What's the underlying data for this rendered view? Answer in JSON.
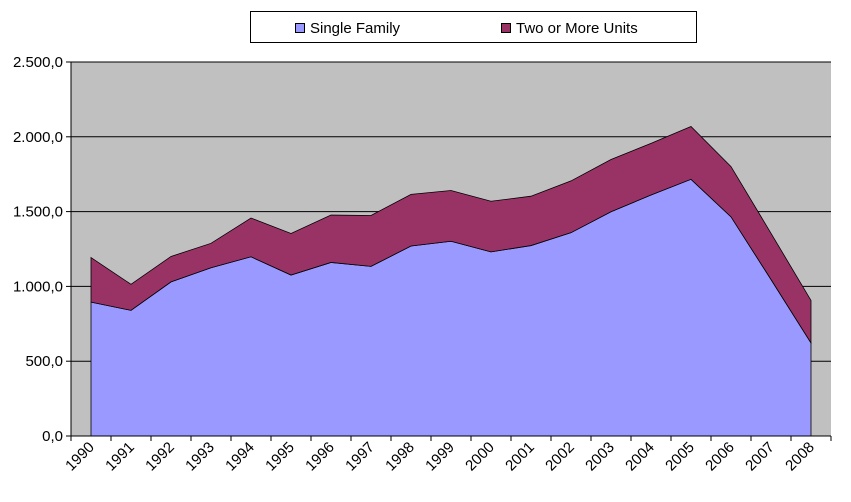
{
  "chart_data": {
    "type": "area",
    "stacked": true,
    "title": "",
    "xlabel": "",
    "ylabel": "",
    "categories": [
      "1990",
      "1991",
      "1992",
      "1993",
      "1994",
      "1995",
      "1996",
      "1997",
      "1998",
      "1999",
      "2000",
      "2001",
      "2002",
      "2003",
      "2004",
      "2005",
      "2006",
      "2007",
      "2008"
    ],
    "series": [
      {
        "name": "Single Family",
        "color": "#9999ff",
        "values": [
          895,
          840,
          1030,
          1125,
          1198,
          1076,
          1160,
          1134,
          1270,
          1302,
          1231,
          1273,
          1359,
          1499,
          1611,
          1716,
          1465,
          1046,
          622
        ]
      },
      {
        "name": "Two or More Units",
        "color": "#993366",
        "values": [
          298,
          174,
          170,
          163,
          259,
          278,
          317,
          340,
          345,
          339,
          338,
          330,
          346,
          349,
          345,
          353,
          336,
          309,
          284
        ]
      }
    ],
    "ylim": [
      0,
      2500
    ],
    "yticks": [
      0,
      500,
      1000,
      1500,
      2000,
      2500
    ],
    "ytick_labels": [
      "0,0",
      "500,0",
      "1.000,0",
      "1.500,0",
      "2.000,0",
      "2.500,0"
    ],
    "grid": true,
    "plot_background": "#c0c0c0",
    "legend": {
      "position": "top",
      "orientation": "horizontal"
    }
  }
}
